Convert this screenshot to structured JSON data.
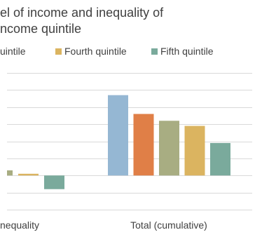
{
  "chart_data": {
    "type": "bar",
    "title_lines": [
      "el of income and inequality of",
      "ncome quintile"
    ],
    "categories": [
      "nequality",
      "Total (cumulative)"
    ],
    "series": [
      {
        "name": "",
        "color": "#95b7d3",
        "values": [
          null,
          4.7
        ]
      },
      {
        "name": "",
        "color": "#e07f47",
        "values": [
          null,
          3.6
        ]
      },
      {
        "name": "",
        "color": "#a8ad82",
        "values": [
          null,
          3.2
        ]
      },
      {
        "name": "Fourth quintile",
        "color": "#dbb460",
        "values": [
          0.1,
          2.9
        ]
      },
      {
        "name": "Fifth quintile",
        "color": "#7aaa9c",
        "values": [
          -0.8,
          1.9
        ]
      }
    ],
    "partial_bar": {
      "color": "#a8ad82",
      "value": 0.3
    },
    "legend_partial_label": "uintile",
    "legend_partial_color": "#a8ad82",
    "ylim": [
      -2,
      6
    ],
    "grid": true,
    "legend_position": "top"
  }
}
